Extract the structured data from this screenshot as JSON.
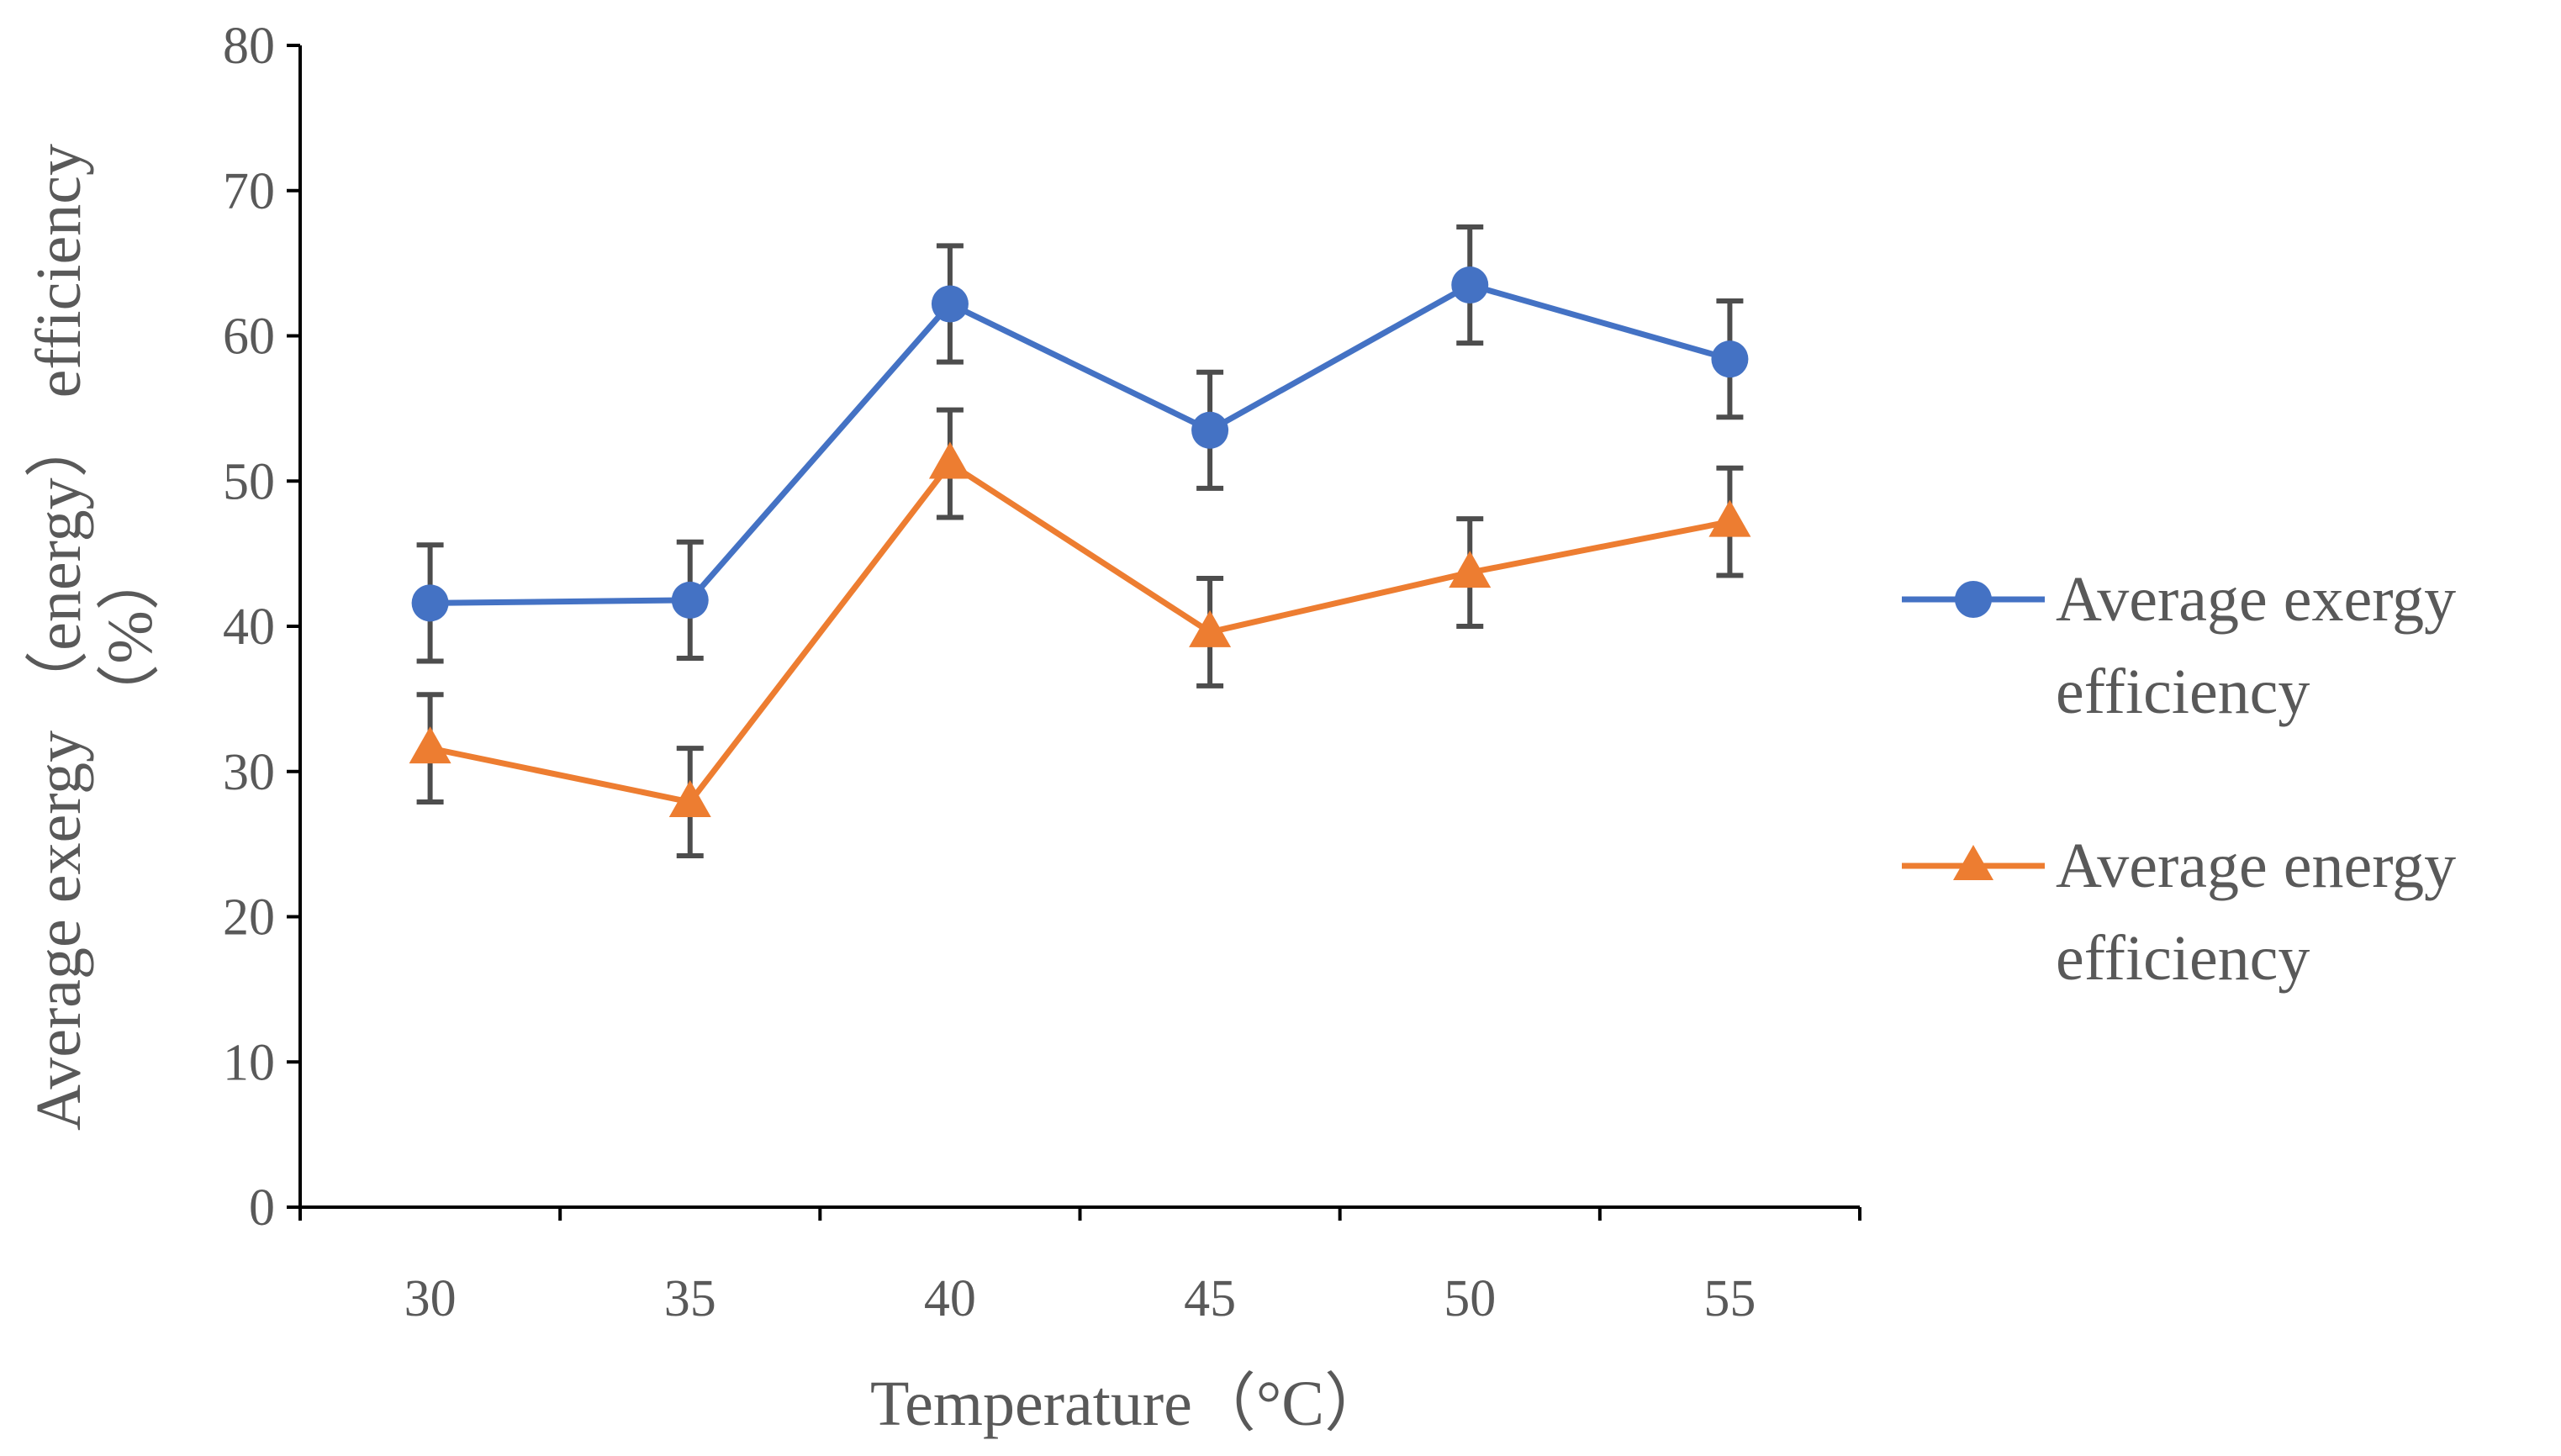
{
  "chart_data": {
    "type": "line",
    "xlabel": "Temperature（°C）",
    "ylabel_line1": "Average exergy （energy） efficiency",
    "ylabel_line2": "（%）",
    "ylim": [
      0,
      80
    ],
    "yticks": [
      0,
      10,
      20,
      30,
      40,
      50,
      60,
      70,
      80
    ],
    "categories": [
      "30",
      "35",
      "40",
      "45",
      "50",
      "55"
    ],
    "grid": false,
    "legend_position": "right",
    "series": [
      {
        "name": "Average exergy efficiency",
        "legend_line1": "Average exergy",
        "legend_line2": "efficiency",
        "color": "#4472C4",
        "marker": "circle",
        "values": [
          41.6,
          41.8,
          62.2,
          53.5,
          63.5,
          58.4
        ],
        "errors": [
          4.0,
          4.0,
          4.0,
          4.0,
          4.0,
          4.0
        ]
      },
      {
        "name": "Average energy efficiency",
        "legend_line1": "Average energy",
        "legend_line2": "efficiency",
        "color": "#ED7D31",
        "marker": "triangle",
        "values": [
          31.6,
          27.9,
          51.2,
          39.6,
          43.7,
          47.2
        ],
        "errors": [
          3.7,
          3.7,
          3.7,
          3.7,
          3.7,
          3.7
        ]
      }
    ],
    "errorbar_color": "#4D4D4D",
    "axis_color": "#000000"
  }
}
